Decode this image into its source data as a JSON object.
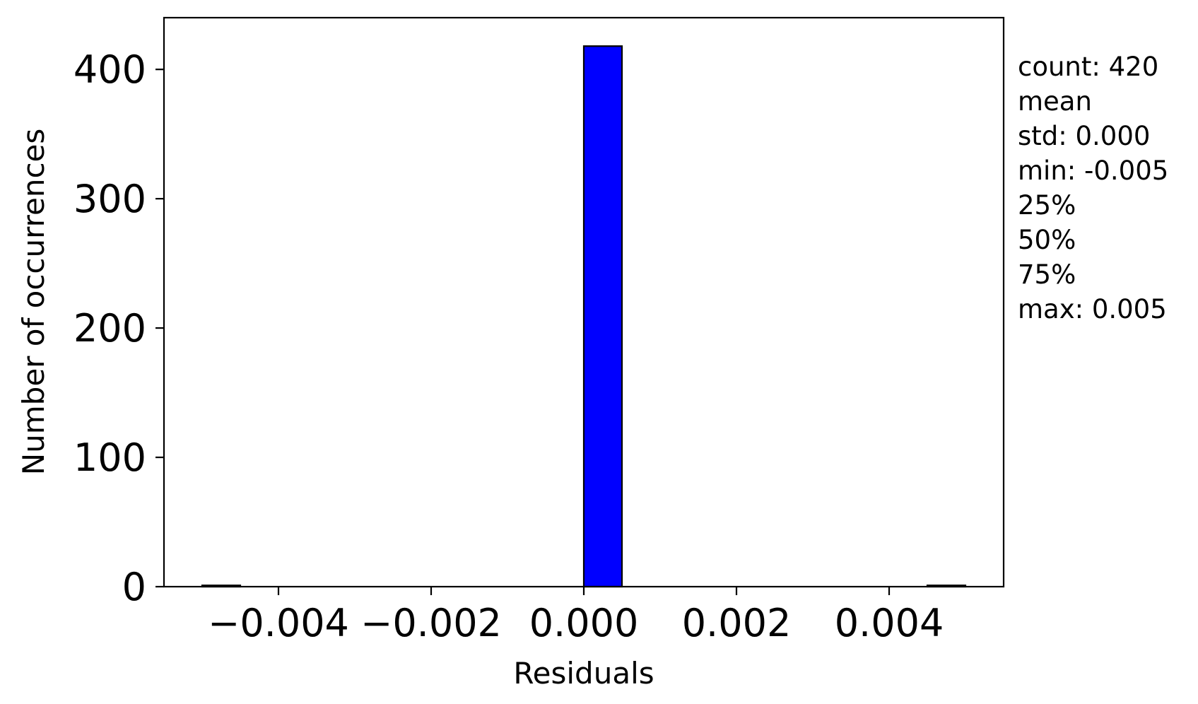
{
  "chart_data": {
    "type": "bar",
    "xlabel": "Residuals",
    "ylabel": "Number of occurrences",
    "xlim": [
      -0.0055,
      0.0055
    ],
    "ylim": [
      0,
      440
    ],
    "x_ticks": [
      -0.004,
      -0.002,
      0.0,
      0.002,
      0.004
    ],
    "x_tick_labels": [
      "−0.004",
      "−0.002",
      "0.000",
      "0.002",
      "0.004"
    ],
    "y_ticks": [
      0,
      100,
      200,
      300,
      400
    ],
    "y_tick_labels": [
      "0",
      "100",
      "200",
      "300",
      "400"
    ],
    "bins": [
      {
        "left": -0.005,
        "right": -0.0045,
        "count": 1
      },
      {
        "left": 0.0,
        "right": 0.0005,
        "count": 418
      },
      {
        "left": 0.0045,
        "right": 0.005,
        "count": 1
      }
    ],
    "bar_color": "#0000ff",
    "edge_color": "#000000",
    "grid": false,
    "legend": "none",
    "stats_text": [
      "count: 420",
      "mean",
      "std: 0.000",
      "min: -0.005",
      "25%",
      "50%",
      "75%",
      "max: 0.005"
    ]
  }
}
